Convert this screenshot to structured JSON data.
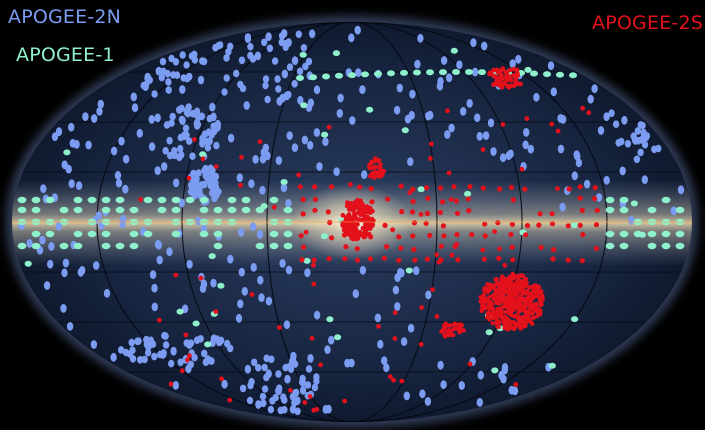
{
  "legend": {
    "apogee_2n": {
      "label": "APOGEE-2N",
      "color": "#7b9cf0"
    },
    "apogee_1": {
      "label": "APOGEE-1",
      "color": "#8ff0cc"
    },
    "apogee_2s": {
      "label": "APOGEE-2S",
      "color": "#e3111b"
    }
  },
  "map": {
    "projection": "aitoff-hammer",
    "coordinates": "galactic",
    "background": "#000000",
    "sky_fill": "#12203b",
    "grid": true,
    "milky_way_band": true
  }
}
